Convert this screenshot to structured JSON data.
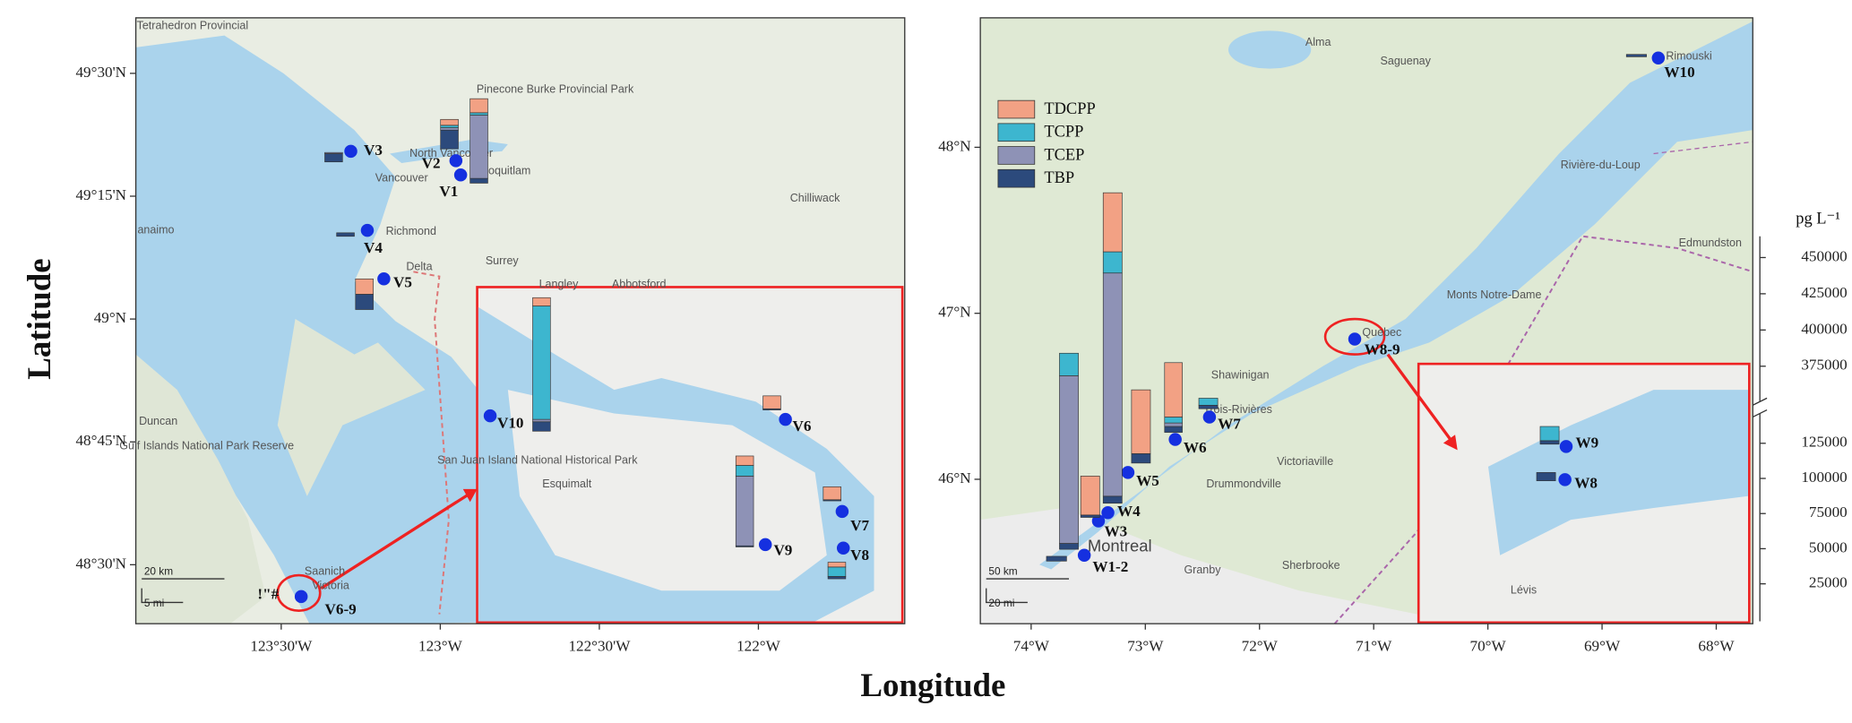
{
  "x_label": "Longitude",
  "y_label": "Latitude",
  "legend": [
    {
      "name": "TDCPP",
      "color": "#f2a184"
    },
    {
      "name": "TCPP",
      "color": "#3db6cf"
    },
    {
      "name": "TCEP",
      "color": "#8e92b6"
    },
    {
      "name": "TBP",
      "color": "#2c4a7c"
    }
  ],
  "scale": {
    "title": "pg L⁻¹",
    "ticks": [
      25000,
      50000,
      75000,
      100000,
      125000,
      375000,
      400000,
      425000,
      450000
    ]
  },
  "left_map": {
    "xlim": [
      -123.957,
      -121.54
    ],
    "ylim": [
      48.38,
      49.613
    ],
    "xticks": [
      {
        "value": -123.5,
        "label": "123°30'W"
      },
      {
        "value": -123,
        "label": "123°W"
      },
      {
        "value": -122.5,
        "label": "122°30'W"
      },
      {
        "value": -122,
        "label": "122°W"
      }
    ],
    "yticks": [
      {
        "value": 49.5,
        "label": "49°30'N"
      },
      {
        "value": 49.25,
        "label": "49°15'N"
      },
      {
        "value": 49,
        "label": "49°N"
      },
      {
        "value": 48.75,
        "label": "48°45'N"
      },
      {
        "value": 48.5,
        "label": "48°30'N"
      }
    ],
    "sites": [
      "V1",
      "V2",
      "V3",
      "V4",
      "V5",
      "V6-9",
      "V10",
      "V6",
      "V7",
      "V8",
      "V9"
    ],
    "marker_text": "!\"#",
    "scale_bar": [
      "20 km",
      "5 mi"
    ],
    "places": [
      "Tetrahedron Provincial",
      "Pinecone Burke Provincial Park",
      "North Vancouver",
      "Coquitlam",
      "Vancouver",
      "Richmond",
      "Delta",
      "Surrey",
      "Langley",
      "Abbotsford",
      "Chilliwack",
      "Duncan",
      "Gulf Islands National Park Reserve",
      "San Juan Island National Historical Park",
      "Saanich",
      "Victoria",
      "Esquimalt",
      "anaimo"
    ]
  },
  "right_map": {
    "xlim": [
      -74.445,
      -67.68
    ],
    "ylim": [
      45.13,
      48.78
    ],
    "xticks": [
      {
        "value": -74,
        "label": "74°W"
      },
      {
        "value": -73,
        "label": "73°W"
      },
      {
        "value": -72,
        "label": "72°W"
      },
      {
        "value": -71,
        "label": "71°W"
      },
      {
        "value": -70,
        "label": "70°W"
      },
      {
        "value": -69,
        "label": "69°W"
      },
      {
        "value": -68,
        "label": "68°W"
      }
    ],
    "yticks": [
      {
        "value": 48,
        "label": "48°N"
      },
      {
        "value": 47,
        "label": "47°N"
      },
      {
        "value": 46,
        "label": "46°N"
      }
    ],
    "sites": [
      "W1-2",
      "W3",
      "W4",
      "W5",
      "W6",
      "W7",
      "W8-9",
      "W10",
      "W9",
      "W8"
    ],
    "scale_bar": [
      "50 km",
      "20 mi"
    ],
    "places": [
      "Alma",
      "Saguenay",
      "Rimouski",
      "Rivière-du-Loup",
      "Edmundston",
      "Monts Notre-Dame",
      "Quebec",
      "Shawinigan",
      "Trois-Rivières",
      "Victoriaville",
      "Drummondville",
      "Montreal",
      "Granby",
      "Sherbrooke",
      "Lévis"
    ]
  },
  "bars": [
    [
      10000,
      1700,
      45000,
      3400
    ],
    [
      4200,
      1700,
      1700,
      13400
    ],
    [
      0,
      0,
      800,
      5900
    ],
    [
      0,
      0,
      0,
      2500
    ],
    [
      10900,
      0,
      0,
      10900
    ],
    [
      5900,
      80700,
      1700,
      6700
    ],
    [
      9200,
      0,
      0,
      800
    ],
    [
      6700,
      7600,
      49600,
      800
    ],
    [
      9200,
      0,
      0,
      800
    ],
    [
      3400,
      6700,
      0,
      1700
    ],
    [
      0,
      0,
      0,
      3400
    ],
    [
      0,
      16000,
      119300,
      4200
    ],
    [
      42000,
      15100,
      158800,
      5000
    ],
    [
      27700,
      0,
      0,
      1700
    ],
    [
      45400,
      0,
      0,
      6700
    ],
    [
      38700,
      4200,
      2500,
      4200
    ],
    [
      0,
      5000,
      0,
      2500
    ],
    [
      0,
      0,
      0,
      1700
    ],
    [
      0,
      10100,
      0,
      2500
    ],
    [
      0,
      0,
      0,
      5900
    ]
  ]
}
